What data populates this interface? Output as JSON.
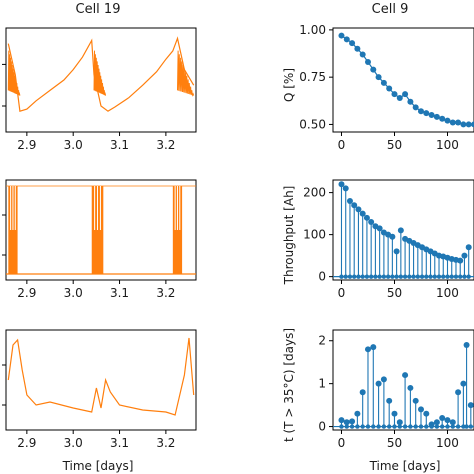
{
  "chart_data": [
    {
      "type": "line",
      "title": "Cell 19",
      "xlabel": "",
      "ylabel": "",
      "xlim": [
        2.855,
        3.265
      ],
      "xticks": [
        "2.9",
        "3.0",
        "3.1",
        "3.2"
      ],
      "xtick_values": [
        2.9,
        3.0,
        3.1,
        3.2
      ],
      "color": "#ff7f0e",
      "series": [
        {
          "values_description": "",
          "x": [
            2.86,
            2.875,
            2.885,
            2.9,
            2.92,
            2.95,
            2.98,
            3.0,
            3.02,
            3.04,
            3.045,
            3.06,
            3.075,
            3.09,
            3.12,
            3.15,
            3.18,
            3.2,
            3.215,
            3.225,
            3.24,
            3.26
          ],
          "y": [
            0.85,
            0.55,
            0.2,
            0.22,
            0.3,
            0.4,
            0.5,
            0.6,
            0.72,
            0.88,
            0.55,
            0.25,
            0.2,
            0.24,
            0.33,
            0.45,
            0.58,
            0.7,
            0.78,
            0.9,
            0.6,
            0.45
          ]
        }
      ]
    },
    {
      "type": "line",
      "xlabel": "",
      "ylabel": "",
      "xlim": [
        2.855,
        3.265
      ],
      "xticks": [
        "2.9",
        "3.0",
        "3.1",
        "3.2"
      ],
      "xtick_values": [
        2.9,
        3.0,
        3.1,
        3.2
      ],
      "color": "#ff7f0e",
      "series": [
        {
          "values_description": "",
          "active_intervals": [
            [
              2.86,
              2.88
            ],
            [
              3.04,
              3.065
            ],
            [
              3.215,
              3.235
            ]
          ]
        }
      ]
    },
    {
      "type": "line",
      "xlabel": "Time [days]",
      "ylabel": "",
      "xlim": [
        2.855,
        3.265
      ],
      "xticks": [
        "2.9",
        "3.0",
        "3.1",
        "3.2"
      ],
      "xtick_values": [
        2.9,
        3.0,
        3.1,
        3.2
      ],
      "color": "#ff7f0e",
      "series": [
        {
          "x": [
            2.86,
            2.87,
            2.88,
            2.89,
            2.9,
            2.92,
            2.95,
            3.0,
            3.04,
            3.05,
            3.06,
            3.07,
            3.08,
            3.1,
            3.15,
            3.2,
            3.22,
            3.24,
            3.25,
            3.26
          ],
          "y": [
            0.5,
            0.85,
            0.9,
            0.6,
            0.35,
            0.25,
            0.28,
            0.22,
            0.18,
            0.42,
            0.22,
            0.5,
            0.38,
            0.25,
            0.2,
            0.18,
            0.15,
            0.55,
            0.92,
            0.35
          ]
        }
      ]
    },
    {
      "type": "scatter",
      "title": "Cell 9",
      "xlabel": "",
      "ylabel": "Q [%]",
      "xlim": [
        -8,
        125
      ],
      "ylim": [
        0.46,
        1.01
      ],
      "xticks": [
        "0",
        "50",
        "100"
      ],
      "xtick_values": [
        0,
        50,
        100
      ],
      "yticks": [
        "0.50",
        "0.75",
        "1.00"
      ],
      "ytick_values": [
        0.5,
        0.75,
        1.0
      ],
      "color": "#1f77b4",
      "series": [
        {
          "x": [
            0,
            5,
            10,
            15,
            20,
            25,
            30,
            35,
            40,
            45,
            50,
            55,
            60,
            65,
            70,
            75,
            80,
            85,
            90,
            95,
            100,
            105,
            110,
            115,
            120,
            125
          ],
          "y": [
            0.97,
            0.95,
            0.93,
            0.9,
            0.87,
            0.83,
            0.79,
            0.75,
            0.72,
            0.69,
            0.66,
            0.64,
            0.66,
            0.62,
            0.59,
            0.57,
            0.56,
            0.55,
            0.54,
            0.53,
            0.52,
            0.51,
            0.51,
            0.5,
            0.5,
            0.5
          ]
        }
      ]
    },
    {
      "type": "stem",
      "xlabel": "",
      "ylabel": "Throughput [Ah]",
      "xlim": [
        -8,
        125
      ],
      "ylim": [
        -8,
        230
      ],
      "xticks": [
        "0",
        "50",
        "100"
      ],
      "xtick_values": [
        0,
        50,
        100
      ],
      "yticks": [
        "0",
        "100",
        "200"
      ],
      "ytick_values": [
        0,
        100,
        200
      ],
      "color": "#1f77b4",
      "series": [
        {
          "x": [
            0,
            4,
            8,
            12,
            16,
            20,
            24,
            28,
            32,
            36,
            40,
            44,
            48,
            52,
            56,
            60,
            64,
            68,
            72,
            76,
            80,
            84,
            88,
            92,
            96,
            100,
            104,
            108,
            112,
            116,
            120
          ],
          "y": [
            220,
            210,
            180,
            170,
            160,
            150,
            140,
            130,
            120,
            115,
            105,
            100,
            95,
            60,
            110,
            90,
            85,
            80,
            75,
            70,
            65,
            60,
            55,
            50,
            48,
            45,
            42,
            40,
            38,
            50,
            70
          ]
        }
      ]
    },
    {
      "type": "stem",
      "xlabel": "Time [days]",
      "ylabel": "t (T > 35°C) [days]",
      "xlim": [
        -8,
        125
      ],
      "ylim": [
        -0.08,
        2.25
      ],
      "xticks": [
        "0",
        "50",
        "100"
      ],
      "xtick_values": [
        0,
        50,
        100
      ],
      "yticks": [
        "0",
        "1",
        "2"
      ],
      "ytick_values": [
        0,
        1,
        2
      ],
      "color": "#1f77b4",
      "series": [
        {
          "x": [
            0,
            5,
            10,
            15,
            20,
            25,
            30,
            35,
            40,
            45,
            50,
            55,
            60,
            65,
            70,
            75,
            80,
            85,
            90,
            95,
            100,
            105,
            110,
            115,
            118,
            122
          ],
          "y": [
            0.15,
            0.1,
            0.12,
            0.3,
            0.8,
            1.8,
            1.85,
            1.0,
            1.1,
            0.6,
            0.3,
            0.1,
            1.2,
            0.9,
            0.6,
            0.4,
            0.3,
            0.05,
            0.1,
            0.2,
            0.15,
            0.1,
            0.8,
            1.0,
            1.9,
            0.5
          ]
        }
      ]
    }
  ]
}
